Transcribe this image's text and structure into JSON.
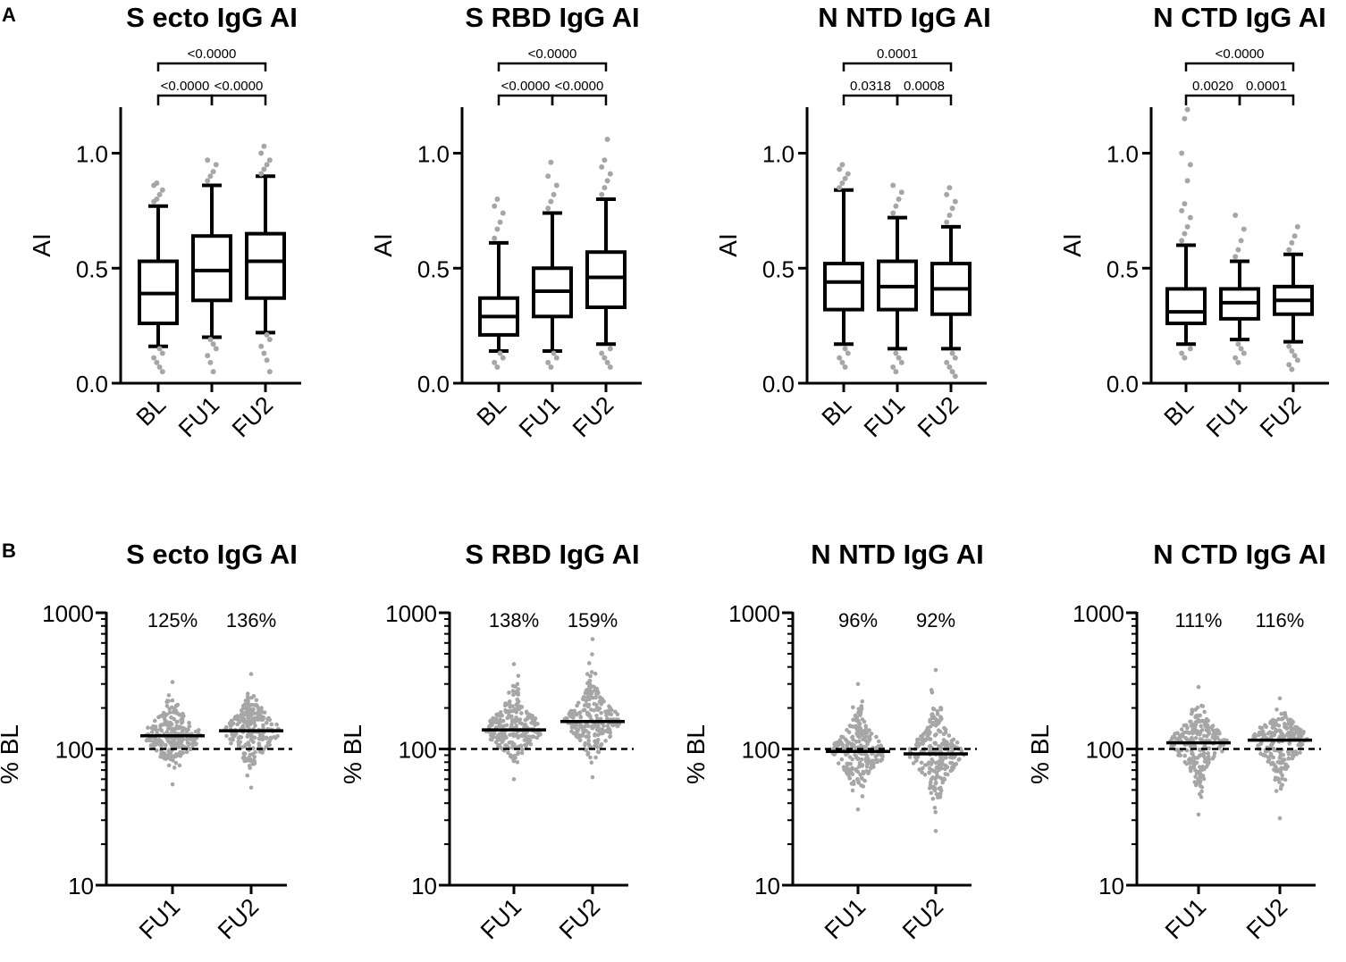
{
  "panel_labels": [
    "A",
    "B"
  ],
  "chart_data": [
    {
      "type": "box",
      "panel": "A",
      "title": "S ecto IgG AI",
      "ylabel": "AI",
      "ylim": [
        0,
        1.2
      ],
      "yticks": [
        0.0,
        0.5,
        1.0
      ],
      "ytick_labels": [
        "0.0",
        "0.5",
        "1.0"
      ],
      "categories": [
        "BL",
        "FU1",
        "FU2"
      ],
      "boxes": [
        {
          "min": 0.16,
          "q1": 0.26,
          "median": 0.39,
          "q3": 0.53,
          "max": 0.77
        },
        {
          "min": 0.2,
          "q1": 0.36,
          "median": 0.49,
          "q3": 0.64,
          "max": 0.86
        },
        {
          "min": 0.22,
          "q1": 0.37,
          "median": 0.53,
          "q3": 0.65,
          "max": 0.9
        }
      ],
      "outliers": [
        [
          0.79,
          0.8,
          0.82,
          0.84,
          0.86,
          0.87,
          0.15,
          0.13,
          0.11,
          0.09,
          0.07,
          0.05
        ],
        [
          0.88,
          0.9,
          0.92,
          0.95,
          0.97,
          0.19,
          0.17,
          0.15,
          0.12,
          0.09,
          0.05
        ],
        [
          0.91,
          0.93,
          0.95,
          0.97,
          1.0,
          1.03,
          0.21,
          0.19,
          0.16,
          0.13,
          0.1,
          0.05
        ]
      ],
      "comparisons": [
        {
          "from": 0,
          "to": 1,
          "label": "<0.0000"
        },
        {
          "from": 1,
          "to": 2,
          "label": "<0.0000"
        },
        {
          "from": 0,
          "to": 2,
          "label": "<0.0000"
        }
      ]
    },
    {
      "type": "box",
      "panel": "A",
      "title": "S RBD IgG AI",
      "ylabel": "AI",
      "ylim": [
        0,
        1.2
      ],
      "yticks": [
        0.0,
        0.5,
        1.0
      ],
      "ytick_labels": [
        "0.0",
        "0.5",
        "1.0"
      ],
      "categories": [
        "BL",
        "FU1",
        "FU2"
      ],
      "boxes": [
        {
          "min": 0.14,
          "q1": 0.21,
          "median": 0.29,
          "q3": 0.37,
          "max": 0.61
        },
        {
          "min": 0.14,
          "q1": 0.29,
          "median": 0.4,
          "q3": 0.5,
          "max": 0.74
        },
        {
          "min": 0.17,
          "q1": 0.33,
          "median": 0.46,
          "q3": 0.57,
          "max": 0.8
        }
      ],
      "outliers": [
        [
          0.63,
          0.67,
          0.7,
          0.74,
          0.77,
          0.8,
          0.13,
          0.11,
          0.09,
          0.07
        ],
        [
          0.76,
          0.79,
          0.82,
          0.86,
          0.9,
          0.96,
          0.13,
          0.11,
          0.09,
          0.07
        ],
        [
          0.82,
          0.85,
          0.88,
          0.91,
          0.94,
          0.97,
          1.06,
          0.15,
          0.13,
          0.11,
          0.09,
          0.07
        ]
      ],
      "comparisons": [
        {
          "from": 0,
          "to": 1,
          "label": "<0.0000"
        },
        {
          "from": 1,
          "to": 2,
          "label": "<0.0000"
        },
        {
          "from": 0,
          "to": 2,
          "label": "<0.0000"
        }
      ]
    },
    {
      "type": "box",
      "panel": "A",
      "title": "N NTD IgG AI",
      "ylabel": "AI",
      "ylim": [
        0,
        1.2
      ],
      "yticks": [
        0.0,
        0.5,
        1.0
      ],
      "ytick_labels": [
        "0.0",
        "0.5",
        "1.0"
      ],
      "categories": [
        "BL",
        "FU1",
        "FU2"
      ],
      "boxes": [
        {
          "min": 0.17,
          "q1": 0.32,
          "median": 0.44,
          "q3": 0.52,
          "max": 0.84
        },
        {
          "min": 0.15,
          "q1": 0.32,
          "median": 0.42,
          "q3": 0.53,
          "max": 0.72
        },
        {
          "min": 0.15,
          "q1": 0.3,
          "median": 0.41,
          "q3": 0.52,
          "max": 0.68
        }
      ],
      "outliers": [
        [
          0.85,
          0.87,
          0.89,
          0.91,
          0.93,
          0.95,
          0.15,
          0.13,
          0.11,
          0.09,
          0.07
        ],
        [
          0.74,
          0.77,
          0.8,
          0.83,
          0.86,
          0.13,
          0.11,
          0.09,
          0.07,
          0.05
        ],
        [
          0.7,
          0.73,
          0.76,
          0.79,
          0.82,
          0.85,
          0.13,
          0.11,
          0.09,
          0.07,
          0.05,
          0.03
        ]
      ],
      "comparisons": [
        {
          "from": 0,
          "to": 1,
          "label": "0.0318"
        },
        {
          "from": 1,
          "to": 2,
          "label": "0.0008"
        },
        {
          "from": 0,
          "to": 2,
          "label": "0.0001"
        }
      ]
    },
    {
      "type": "box",
      "panel": "A",
      "title": "N CTD IgG AI",
      "ylabel": "AI",
      "ylim": [
        0,
        1.2
      ],
      "yticks": [
        0.0,
        0.5,
        1.0
      ],
      "ytick_labels": [
        "0.0",
        "0.5",
        "1.0"
      ],
      "categories": [
        "BL",
        "FU1",
        "FU2"
      ],
      "boxes": [
        {
          "min": 0.17,
          "q1": 0.26,
          "median": 0.31,
          "q3": 0.41,
          "max": 0.6
        },
        {
          "min": 0.19,
          "q1": 0.28,
          "median": 0.35,
          "q3": 0.41,
          "max": 0.53
        },
        {
          "min": 0.18,
          "q1": 0.3,
          "median": 0.36,
          "q3": 0.42,
          "max": 0.56
        }
      ],
      "outliers": [
        [
          0.62,
          0.65,
          0.68,
          0.72,
          0.75,
          0.78,
          0.88,
          0.95,
          1.0,
          1.15,
          1.19,
          0.15,
          0.13,
          0.11
        ],
        [
          0.55,
          0.58,
          0.62,
          0.67,
          0.73,
          0.17,
          0.15,
          0.13,
          0.11,
          0.09
        ],
        [
          0.58,
          0.61,
          0.64,
          0.68,
          0.16,
          0.14,
          0.12,
          0.1,
          0.08,
          0.06
        ]
      ],
      "comparisons": [
        {
          "from": 0,
          "to": 1,
          "label": "0.0020"
        },
        {
          "from": 1,
          "to": 2,
          "label": "0.0001"
        },
        {
          "from": 0,
          "to": 2,
          "label": "<0.0000"
        }
      ]
    },
    {
      "type": "scatter",
      "panel": "B",
      "title": "S ecto IgG AI",
      "ylabel": "% BL",
      "yscale": "log",
      "ylim": [
        10,
        1000
      ],
      "yticks": [
        10,
        100,
        1000
      ],
      "ytick_labels": [
        "10",
        "100",
        "1000"
      ],
      "reference_line": 100,
      "categories": [
        "FU1",
        "FU2"
      ],
      "medians": [
        125,
        136
      ],
      "pct_labels": [
        "125%",
        "136%"
      ],
      "spread": [
        {
          "min": 55,
          "max": 310
        },
        {
          "min": 52,
          "max": 355
        }
      ]
    },
    {
      "type": "scatter",
      "panel": "B",
      "title": "S RBD IgG AI",
      "ylabel": "% BL",
      "yscale": "log",
      "ylim": [
        10,
        1000
      ],
      "yticks": [
        10,
        100,
        1000
      ],
      "ytick_labels": [
        "10",
        "100",
        "1000"
      ],
      "reference_line": 100,
      "categories": [
        "FU1",
        "FU2"
      ],
      "medians": [
        138,
        159
      ],
      "pct_labels": [
        "138%",
        "159%"
      ],
      "spread": [
        {
          "min": 60,
          "max": 420
        },
        {
          "min": 62,
          "max": 640
        }
      ]
    },
    {
      "type": "scatter",
      "panel": "B",
      "title": "N NTD IgG AI",
      "ylabel": "% BL",
      "yscale": "log",
      "ylim": [
        10,
        1000
      ],
      "yticks": [
        10,
        100,
        1000
      ],
      "ytick_labels": [
        "10",
        "100",
        "1000"
      ],
      "reference_line": 100,
      "categories": [
        "FU1",
        "FU2"
      ],
      "medians": [
        96,
        92
      ],
      "pct_labels": [
        "96%",
        "92%"
      ],
      "spread": [
        {
          "min": 36,
          "max": 300
        },
        {
          "min": 25,
          "max": 380
        }
      ]
    },
    {
      "type": "scatter",
      "panel": "B",
      "title": "N CTD IgG AI",
      "ylabel": "% BL",
      "yscale": "log",
      "ylim": [
        10,
        1000
      ],
      "yticks": [
        10,
        100,
        1000
      ],
      "ytick_labels": [
        "10",
        "100",
        "1000"
      ],
      "reference_line": 100,
      "categories": [
        "FU1",
        "FU2"
      ],
      "medians": [
        111,
        116
      ],
      "pct_labels": [
        "111%",
        "116%"
      ],
      "spread": [
        {
          "min": 33,
          "max": 285
        },
        {
          "min": 31,
          "max": 235
        }
      ]
    }
  ]
}
